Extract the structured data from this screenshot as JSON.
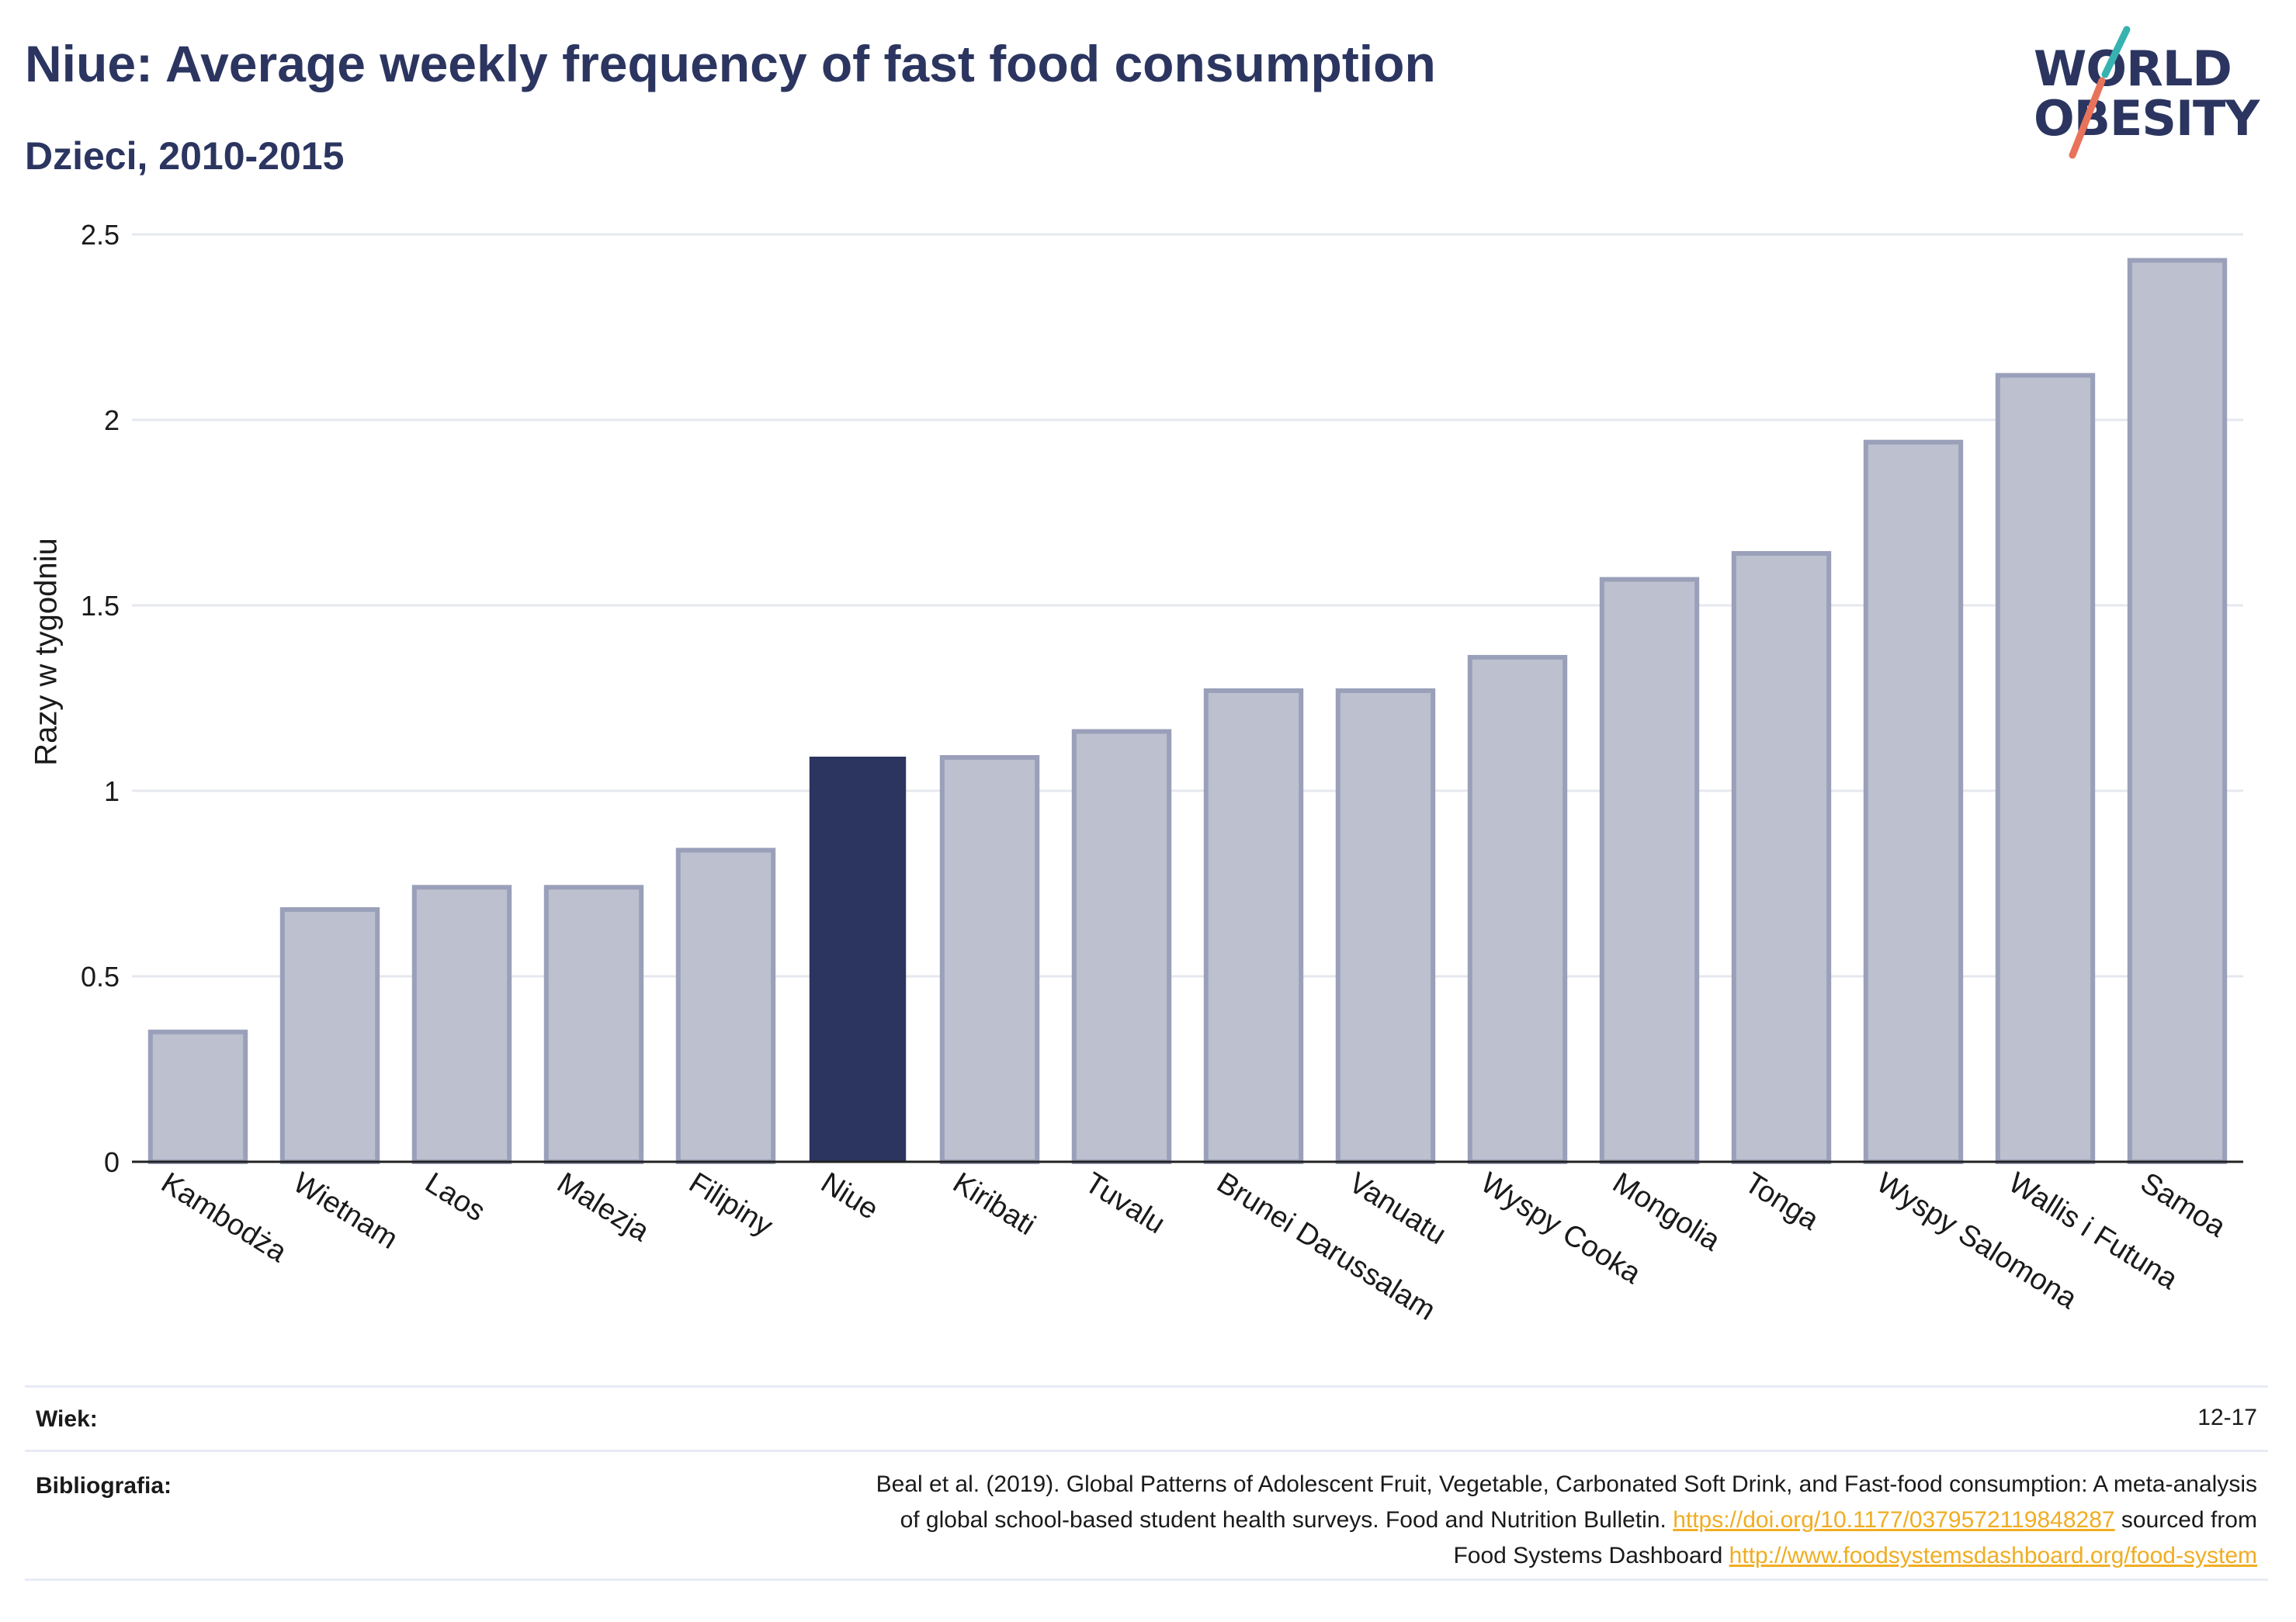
{
  "header": {
    "title": "Niue: Average weekly frequency of fast food consumption",
    "subtitle": "Dzieci, 2010-2015"
  },
  "logo": {
    "line1": "WORLD",
    "line2": "OBESITY",
    "colors": {
      "text": "#2b3560",
      "slash_top": "#36b3b0",
      "slash_bottom": "#e8735a"
    }
  },
  "colors": {
    "bar_fill": "#bcc0cf",
    "bar_stroke": "#9aa0b9",
    "highlight": "#2b3560",
    "grid": "#e6e8ef",
    "axis": "#222222",
    "link": "#f0ad22"
  },
  "chart_data": {
    "type": "bar",
    "title": "Niue: Average weekly frequency of fast food consumption",
    "subtitle": "Dzieci, 2010-2015",
    "xlabel": "",
    "ylabel": "Razy w tygodniu",
    "ylim": [
      0,
      2.5
    ],
    "yticks": [
      0,
      0.5,
      1,
      1.5,
      2,
      2.5
    ],
    "ytick_labels": [
      "0",
      "0.5",
      "1",
      "1.5",
      "2",
      "2.5"
    ],
    "grid": true,
    "legend": "none",
    "highlight": "Niue",
    "categories": [
      "Kambodża",
      "Wietnam",
      "Laos",
      "Malezja",
      "Filipiny",
      "Niue",
      "Kiribati",
      "Tuvalu",
      "Brunei Darussalam",
      "Vanuatu",
      "Wyspy Cooka",
      "Mongolia",
      "Tonga",
      "Wyspy Salomona",
      "Wallis i Futuna",
      "Samoa"
    ],
    "values": [
      0.35,
      0.68,
      0.74,
      0.74,
      0.84,
      1.09,
      1.09,
      1.16,
      1.27,
      1.27,
      1.36,
      1.57,
      1.64,
      1.94,
      2.12,
      2.43
    ]
  },
  "footer": {
    "age_label": "Wiek:",
    "age_value": "12-17",
    "bib_label": "Bibliografia:",
    "bib_line1": "Beal et al. (2019). Global Patterns of Adolescent Fruit, Vegetable, Carbonated Soft Drink, and Fast-food consumption: A meta-analysis",
    "bib_line2_text": "of global school-based student health surveys. Food and Nutrition Bulletin.",
    "bib_line2_link": "https://doi.org/10.1177/0379572119848287",
    "bib_line2_suffix": "sourced from",
    "bib_line3_text": "Food Systems Dashboard",
    "bib_line3_link": "http://www.foodsystemsdashboard.org/food-system"
  }
}
